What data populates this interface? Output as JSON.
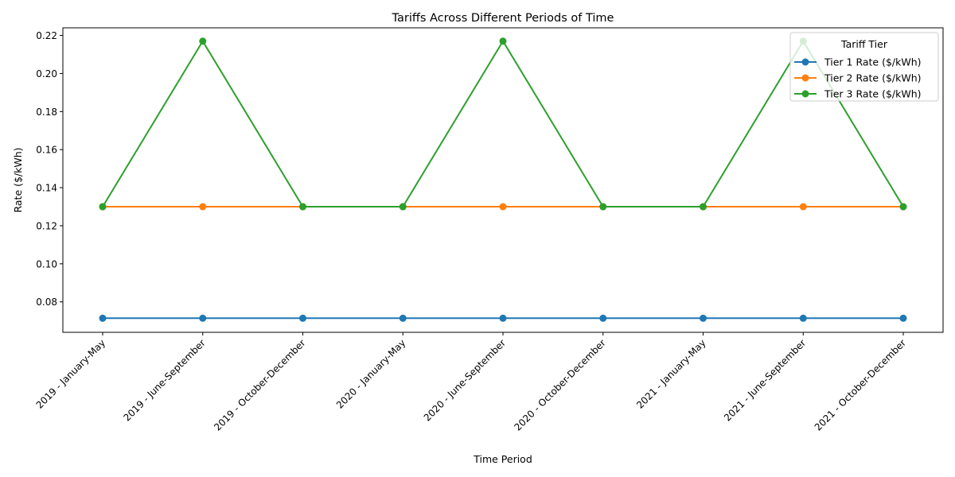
{
  "chart_data": {
    "type": "line",
    "title": "Tariffs Across Different Periods of Time",
    "xlabel": "Time Period",
    "ylabel": "Rate ($/kWh)",
    "categories": [
      "2019 - January-May",
      "2019 - June-September",
      "2019 - October-December",
      "2020 - January-May",
      "2020 - June-September",
      "2020 - October-December",
      "2021 - January-May",
      "2021 - June-September",
      "2021 - October-December"
    ],
    "y_ticks": [
      0.08,
      0.1,
      0.12,
      0.14,
      0.16,
      0.18,
      0.2,
      0.22
    ],
    "ylim": [
      0.064,
      0.224
    ],
    "grid": false,
    "legend": {
      "title": "Tariff Tier",
      "placement": "top-right"
    },
    "series": [
      {
        "name": "Tier 1 Rate ($/kWh)",
        "color": "#1f77b4",
        "values": [
          0.0714,
          0.0714,
          0.0714,
          0.0714,
          0.0714,
          0.0714,
          0.0714,
          0.0714,
          0.0714
        ]
      },
      {
        "name": "Tier 2 Rate ($/kWh)",
        "color": "#ff7f0e",
        "values": [
          0.13,
          0.13,
          0.13,
          0.13,
          0.13,
          0.13,
          0.13,
          0.13,
          0.13
        ]
      },
      {
        "name": "Tier 3 Rate ($/kWh)",
        "color": "#2ca02c",
        "values": [
          0.13,
          0.217,
          0.13,
          0.13,
          0.217,
          0.13,
          0.13,
          0.217,
          0.13
        ]
      }
    ]
  }
}
